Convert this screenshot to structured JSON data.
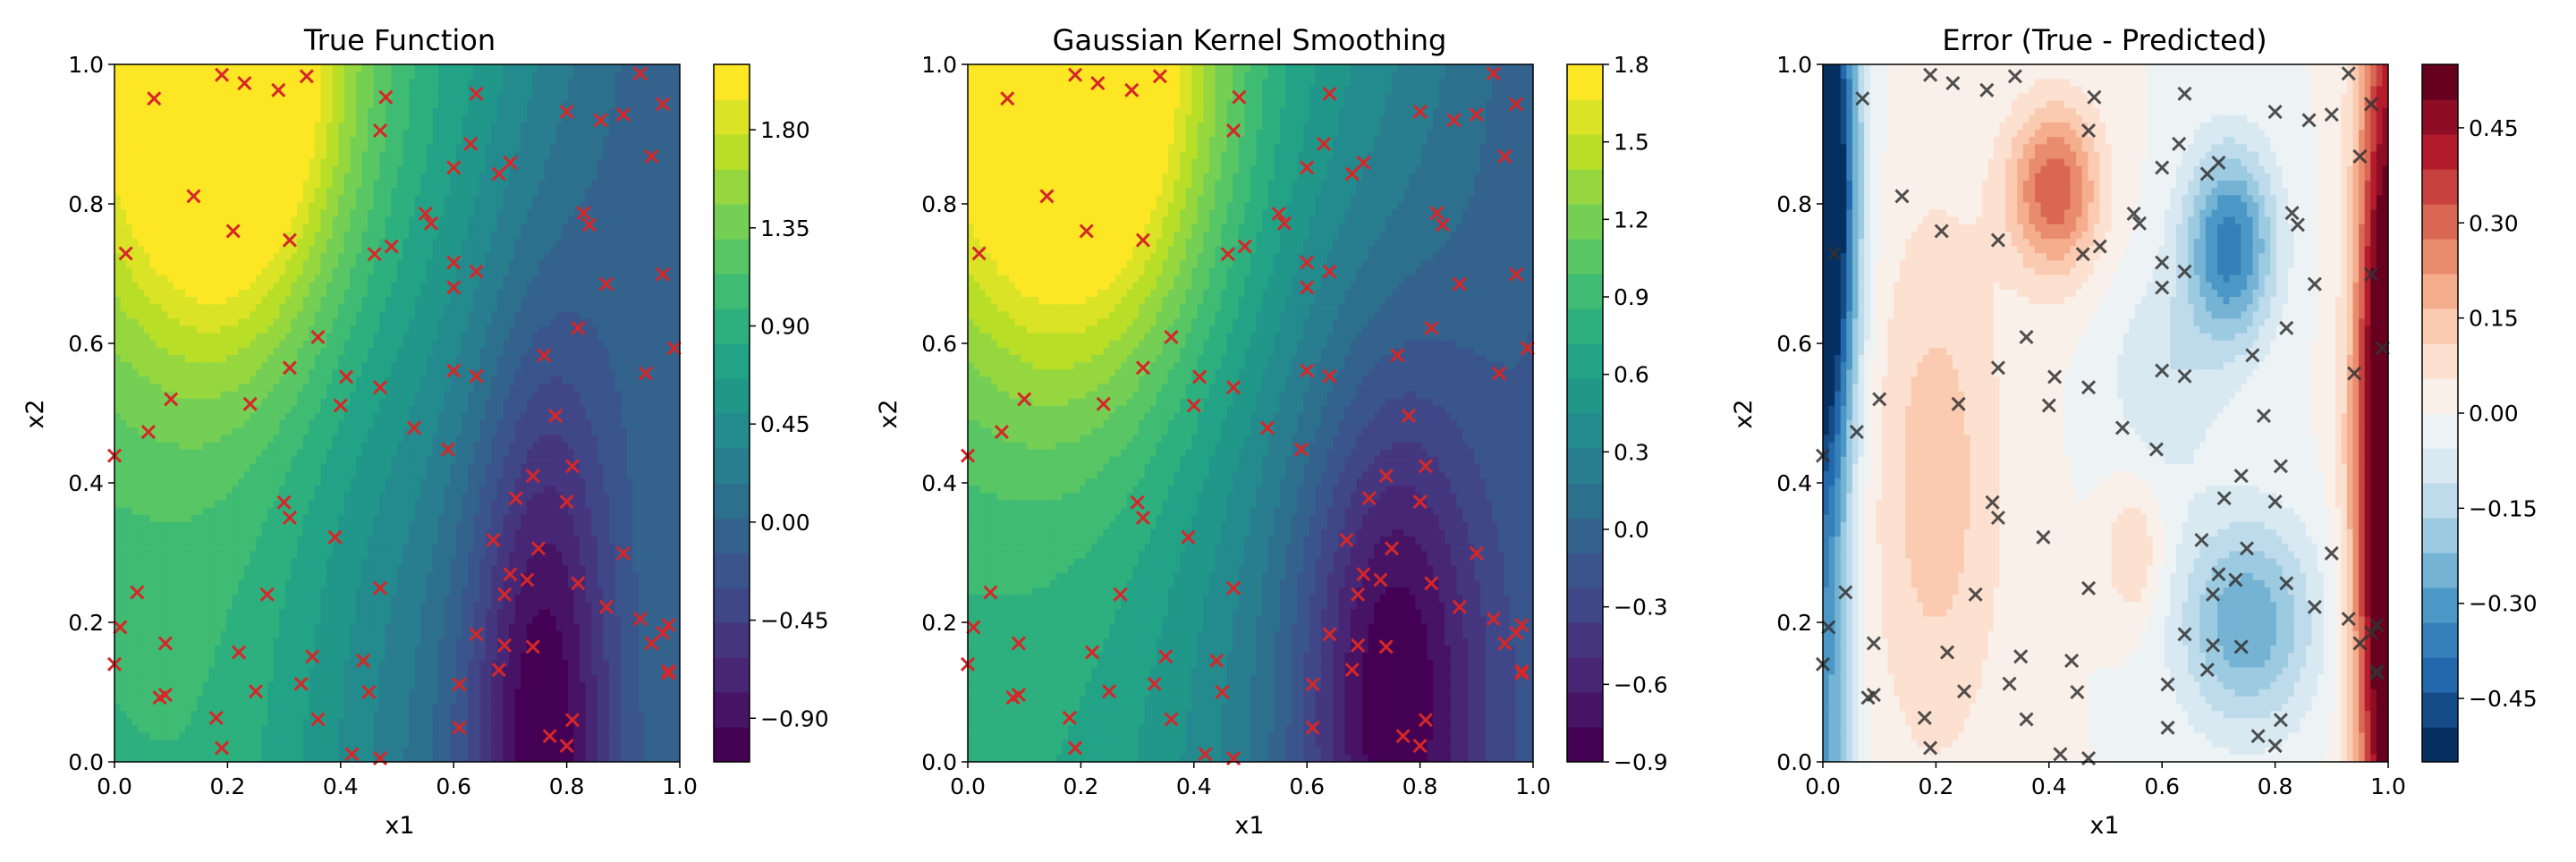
{
  "chart_data": [
    {
      "type": "contour",
      "title": "True Function",
      "xlabel": "x1",
      "ylabel": "x2",
      "xlim": [
        0,
        1
      ],
      "ylim": [
        0,
        1
      ],
      "xticks": [
        "0.0",
        "0.2",
        "0.4",
        "0.6",
        "0.8",
        "1.0"
      ],
      "yticks": [
        "0.0",
        "0.2",
        "0.4",
        "0.6",
        "0.8",
        "1.0"
      ],
      "colormap": "viridis",
      "marker_color": "#d62728",
      "grid": false,
      "colorbar": {
        "ticks": [
          "-0.90",
          "-0.45",
          "0.00",
          "0.45",
          "0.90",
          "1.35",
          "1.80"
        ],
        "tick_values": [
          -0.9,
          -0.45,
          0.0,
          0.45,
          0.9,
          1.35,
          1.8
        ],
        "range": [
          -1.1,
          2.1
        ]
      },
      "surface": "approx: high (~2.0) near x1=0.2 at top, low (~-1.0) near x1=0.75 at bottom"
    },
    {
      "type": "contour",
      "title": "Gaussian Kernel Smoothing",
      "xlabel": "x1",
      "ylabel": "x2",
      "xlim": [
        0,
        1
      ],
      "ylim": [
        0,
        1
      ],
      "xticks": [
        "0.0",
        "0.2",
        "0.4",
        "0.6",
        "0.8",
        "1.0"
      ],
      "yticks": [
        "0.0",
        "0.2",
        "0.4",
        "0.6",
        "0.8",
        "1.0"
      ],
      "colormap": "viridis",
      "marker_color": "#d62728",
      "grid": false,
      "colorbar": {
        "ticks": [
          "-0.9",
          "-0.6",
          "-0.3",
          "0.0",
          "0.3",
          "0.6",
          "0.9",
          "1.2",
          "1.5",
          "1.8"
        ],
        "tick_values": [
          -0.9,
          -0.6,
          -0.3,
          0.0,
          0.3,
          0.6,
          0.9,
          1.2,
          1.5,
          1.8
        ],
        "range": [
          -0.9,
          1.8
        ]
      },
      "surface": "smoothed version of true function"
    },
    {
      "type": "contour",
      "title": "Error (True - Predicted)",
      "xlabel": "x1",
      "ylabel": "x2",
      "xlim": [
        0,
        1
      ],
      "ylim": [
        0,
        1
      ],
      "xticks": [
        "0.0",
        "0.2",
        "0.4",
        "0.6",
        "0.8",
        "1.0"
      ],
      "yticks": [
        "0.0",
        "0.2",
        "0.4",
        "0.6",
        "0.8",
        "1.0"
      ],
      "colormap": "RdBu_r",
      "marker_color": "#333333",
      "grid": false,
      "colorbar": {
        "ticks": [
          "-0.45",
          "-0.30",
          "-0.15",
          "0.00",
          "0.15",
          "0.30",
          "0.45"
        ],
        "tick_values": [
          -0.45,
          -0.3,
          -0.15,
          0.0,
          0.15,
          0.3,
          0.45
        ],
        "range": [
          -0.55,
          0.55
        ]
      },
      "surface": "blue (negative) near left edge and around x1=0.7; red (positive) near right edge and x1=0.4 top"
    }
  ],
  "sample_points": [
    [
      0.19,
      0.985
    ],
    [
      0.23,
      0.973
    ],
    [
      0.34,
      0.983
    ],
    [
      0.29,
      0.963
    ],
    [
      0.07,
      0.951
    ],
    [
      0.48,
      0.953
    ],
    [
      0.64,
      0.958
    ],
    [
      0.93,
      0.987
    ],
    [
      0.97,
      0.943
    ],
    [
      0.9,
      0.928
    ],
    [
      0.86,
      0.92
    ],
    [
      0.8,
      0.932
    ],
    [
      0.47,
      0.905
    ],
    [
      0.6,
      0.852
    ],
    [
      0.68,
      0.843
    ],
    [
      0.7,
      0.859
    ],
    [
      0.63,
      0.886
    ],
    [
      0.95,
      0.868
    ],
    [
      0.14,
      0.811
    ],
    [
      0.21,
      0.761
    ],
    [
      0.31,
      0.748
    ],
    [
      0.02,
      0.729
    ],
    [
      0.46,
      0.728
    ],
    [
      0.49,
      0.739
    ],
    [
      0.55,
      0.786
    ],
    [
      0.56,
      0.772
    ],
    [
      0.83,
      0.787
    ],
    [
      0.84,
      0.77
    ],
    [
      0.6,
      0.716
    ],
    [
      0.64,
      0.703
    ],
    [
      0.6,
      0.68
    ],
    [
      0.87,
      0.685
    ],
    [
      0.97,
      0.699
    ],
    [
      0.36,
      0.609
    ],
    [
      0.31,
      0.565
    ],
    [
      0.76,
      0.583
    ],
    [
      0.82,
      0.622
    ],
    [
      0.99,
      0.593
    ],
    [
      0.41,
      0.552
    ],
    [
      0.47,
      0.537
    ],
    [
      0.6,
      0.561
    ],
    [
      0.64,
      0.553
    ],
    [
      0.94,
      0.557
    ],
    [
      0.24,
      0.513
    ],
    [
      0.4,
      0.511
    ],
    [
      0.1,
      0.52
    ],
    [
      0.06,
      0.473
    ],
    [
      0.53,
      0.479
    ],
    [
      0.78,
      0.496
    ],
    [
      0.0,
      0.439
    ],
    [
      0.59,
      0.448
    ],
    [
      0.81,
      0.424
    ],
    [
      0.74,
      0.41
    ],
    [
      0.3,
      0.372
    ],
    [
      0.31,
      0.35
    ],
    [
      0.71,
      0.378
    ],
    [
      0.8,
      0.373
    ],
    [
      0.39,
      0.322
    ],
    [
      0.67,
      0.318
    ],
    [
      0.75,
      0.306
    ],
    [
      0.9,
      0.299
    ],
    [
      0.47,
      0.249
    ],
    [
      0.73,
      0.261
    ],
    [
      0.7,
      0.269
    ],
    [
      0.82,
      0.256
    ],
    [
      0.27,
      0.24
    ],
    [
      0.69,
      0.24
    ],
    [
      0.04,
      0.243
    ],
    [
      0.87,
      0.222
    ],
    [
      0.01,
      0.193
    ],
    [
      0.0,
      0.14
    ],
    [
      0.09,
      0.17
    ],
    [
      0.64,
      0.183
    ],
    [
      0.69,
      0.167
    ],
    [
      0.74,
      0.165
    ],
    [
      0.93,
      0.205
    ],
    [
      0.95,
      0.17
    ],
    [
      0.98,
      0.196
    ],
    [
      0.97,
      0.185
    ],
    [
      0.22,
      0.157
    ],
    [
      0.35,
      0.151
    ],
    [
      0.44,
      0.145
    ],
    [
      0.33,
      0.112
    ],
    [
      0.25,
      0.101
    ],
    [
      0.45,
      0.1
    ],
    [
      0.61,
      0.111
    ],
    [
      0.68,
      0.132
    ],
    [
      0.98,
      0.127
    ],
    [
      0.98,
      0.13
    ],
    [
      0.08,
      0.092
    ],
    [
      0.09,
      0.096
    ],
    [
      0.18,
      0.063
    ],
    [
      0.36,
      0.061
    ],
    [
      0.61,
      0.049
    ],
    [
      0.77,
      0.037
    ],
    [
      0.81,
      0.06
    ],
    [
      0.8,
      0.023
    ],
    [
      0.19,
      0.02
    ],
    [
      0.42,
      0.011
    ],
    [
      0.47,
      0.005
    ]
  ]
}
